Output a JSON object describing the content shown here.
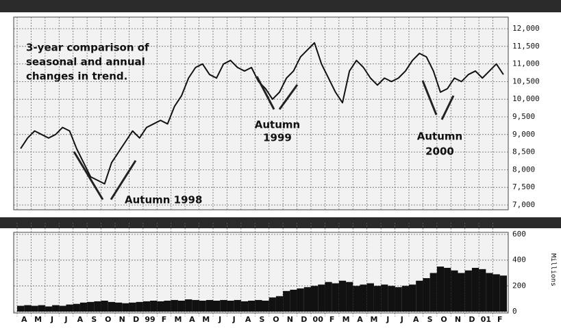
{
  "chart_data": [
    {
      "type": "line",
      "annotations": [
        "3-year comparison of",
        "seasonal and annual",
        "changes in trend.",
        "Autumn 1998",
        "Autumn",
        "1999",
        "Autumn",
        "2000"
      ],
      "categories": [
        "A",
        null,
        "M",
        null,
        "J",
        null,
        "J",
        null,
        "A",
        null,
        "S",
        null,
        "O",
        null,
        "N",
        null,
        "D",
        null,
        "99",
        null,
        "F",
        null,
        "M",
        null,
        "A",
        null,
        "M",
        null,
        "J",
        null,
        "J",
        null,
        "A",
        null,
        "S",
        null,
        "O",
        null,
        "N",
        null,
        "D",
        null,
        "00",
        null,
        "F",
        null,
        "M",
        null,
        "A",
        null,
        "M",
        null,
        "J",
        null,
        "J",
        null,
        "A",
        null,
        "S",
        null,
        "O",
        null,
        "N",
        null,
        "D",
        null,
        "01",
        null,
        "F",
        null
      ],
      "values": [
        8600,
        8900,
        9100,
        9000,
        8900,
        9000,
        9200,
        9100,
        8600,
        8200,
        7800,
        7700,
        7600,
        8200,
        8500,
        8800,
        9100,
        8900,
        9200,
        9300,
        9400,
        9300,
        9800,
        10100,
        10600,
        10900,
        11000,
        10700,
        10600,
        11000,
        11100,
        10900,
        10800,
        10900,
        10500,
        10300,
        10000,
        10200,
        10600,
        10800,
        11200,
        11400,
        11600,
        11000,
        10600,
        10200,
        9900,
        10800,
        11100,
        10900,
        10600,
        10400,
        10600,
        10500,
        10600,
        10800,
        11100,
        11300,
        11200,
        10800,
        10200,
        10300,
        10600,
        10500,
        10700,
        10800,
        10600,
        10800,
        11000,
        10700
      ],
      "color": "#111111",
      "ylim": [
        7000,
        12000
      ],
      "yticks": [
        {
          "value": 7000,
          "label": "7,000"
        },
        {
          "value": 7500,
          "label": "7,500"
        },
        {
          "value": 8000,
          "label": "8,000"
        },
        {
          "value": 8500,
          "label": "8,500"
        },
        {
          "value": 9000,
          "label": "9,000"
        },
        {
          "value": 9500,
          "label": "9,500"
        },
        {
          "value": 10000,
          "label": "10,000"
        },
        {
          "value": 10500,
          "label": "10,500"
        },
        {
          "value": 11000,
          "label": "11,000"
        },
        {
          "value": 11500,
          "label": "11,500"
        },
        {
          "value": 12000,
          "label": "12,000"
        }
      ],
      "grid": true
    },
    {
      "type": "bar",
      "y_label": "Millions",
      "values": [
        45,
        50,
        45,
        50,
        40,
        50,
        45,
        55,
        60,
        70,
        75,
        80,
        85,
        75,
        70,
        65,
        70,
        75,
        80,
        85,
        80,
        85,
        90,
        85,
        95,
        90,
        85,
        90,
        85,
        90,
        85,
        90,
        80,
        85,
        90,
        85,
        110,
        120,
        160,
        170,
        180,
        190,
        200,
        210,
        230,
        220,
        240,
        230,
        200,
        210,
        220,
        200,
        210,
        200,
        190,
        200,
        210,
        240,
        260,
        300,
        350,
        340,
        320,
        300,
        320,
        340,
        330,
        300,
        290,
        280
      ],
      "color": "#111111",
      "ylim": [
        0,
        600
      ],
      "yticks": [
        0,
        200,
        400,
        600
      ],
      "grid": true
    }
  ]
}
